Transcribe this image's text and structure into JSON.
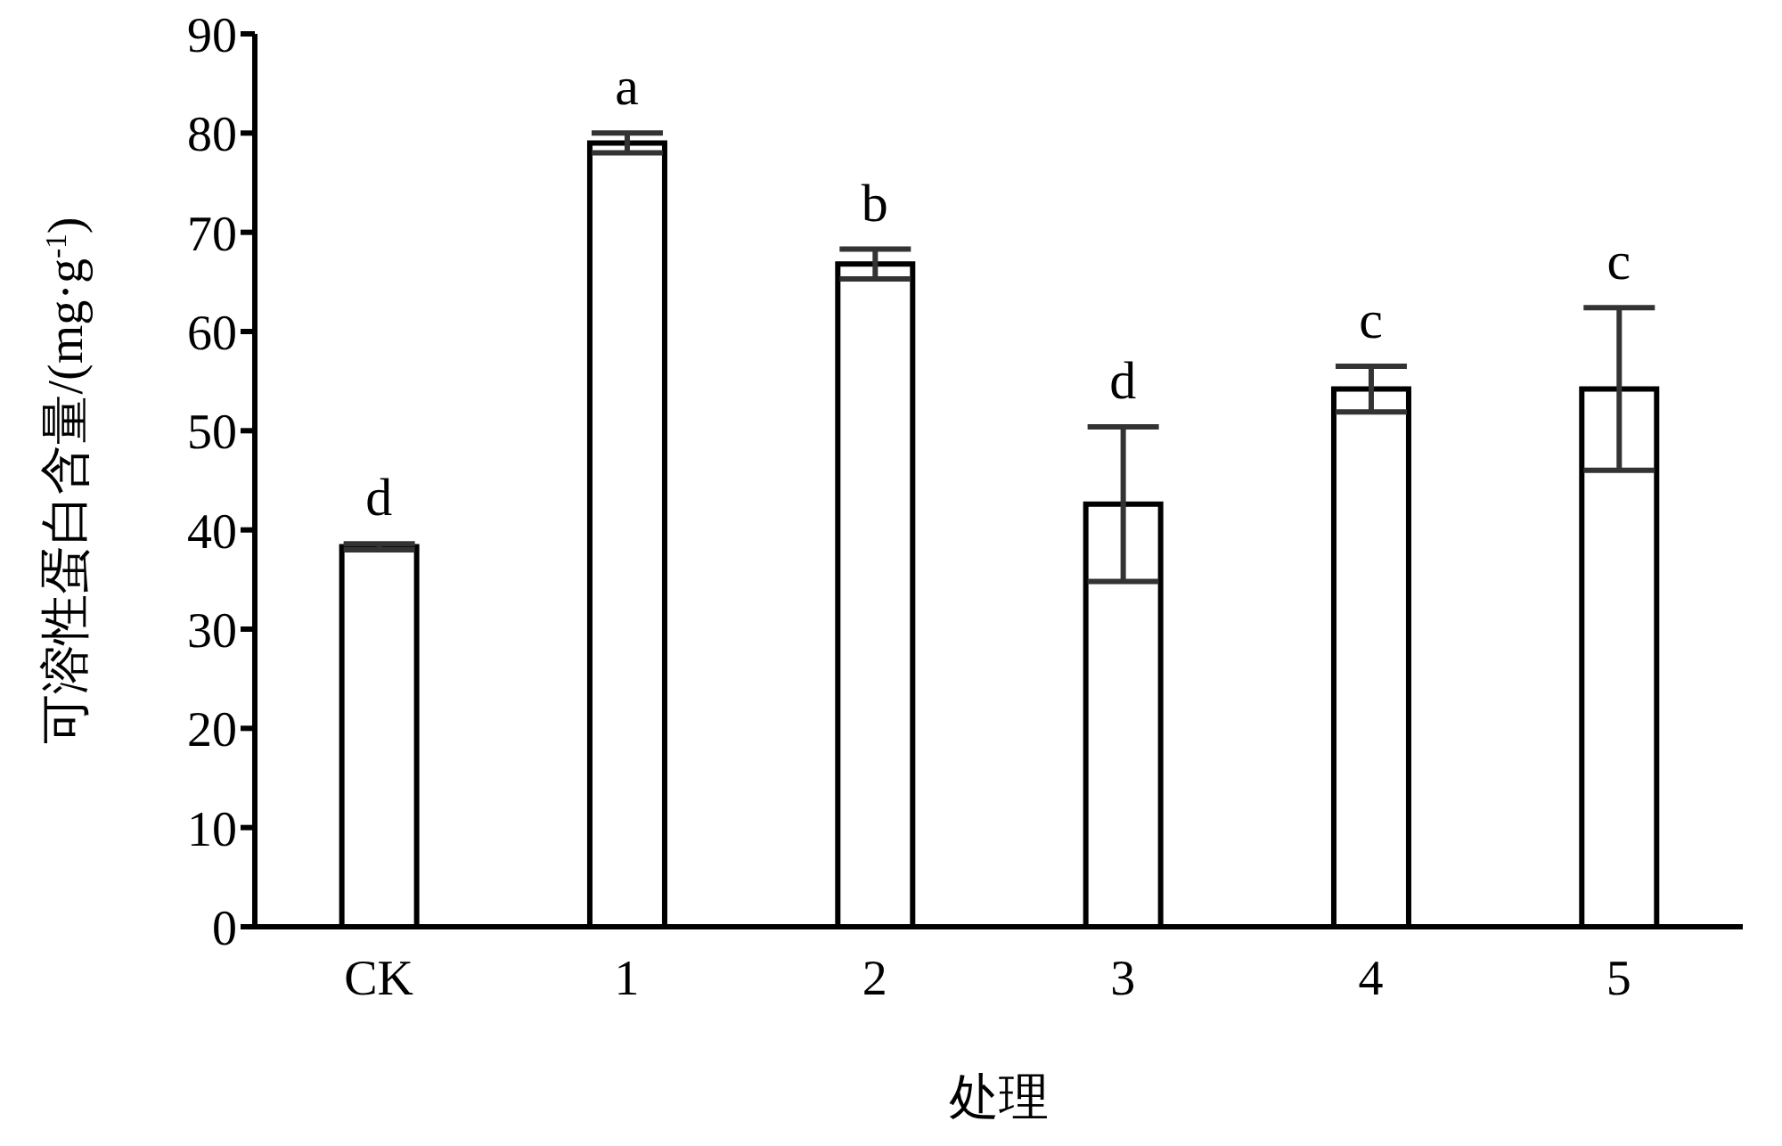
{
  "chart_data": {
    "type": "bar",
    "xlabel": "处理",
    "ylabel": "可溶性蛋白含量/(mg·g$^{-1}$)",
    "categories": [
      "CK",
      "1",
      "2",
      "3",
      "4",
      "5"
    ],
    "values": [
      38.3,
      79.0,
      66.8,
      42.6,
      54.2,
      54.2
    ],
    "errors": [
      0.3,
      1.0,
      1.5,
      7.8,
      2.3,
      8.2
    ],
    "color": "#ffffff",
    "ylim": [
      0,
      90
    ],
    "yticks": [
      0,
      10,
      20,
      30,
      40,
      50,
      60,
      70,
      80,
      90
    ],
    "grid": false,
    "legend": false,
    "annotations": [
      "d",
      "a",
      "b",
      "d",
      "c",
      "c"
    ]
  }
}
